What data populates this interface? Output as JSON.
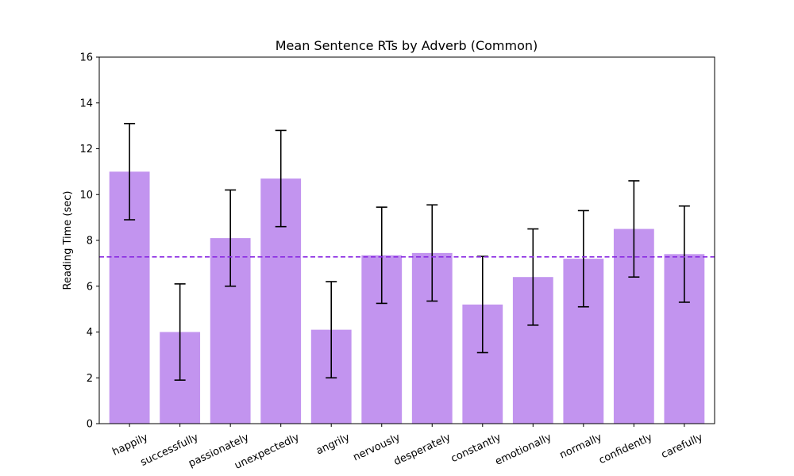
{
  "chart_data": {
    "type": "bar",
    "title": "Mean Sentence RTs by Adverb (Common)",
    "xlabel": "",
    "ylabel": "Reading Time (sec)",
    "ylim": [
      0,
      16
    ],
    "yticks": [
      0,
      2,
      4,
      6,
      8,
      10,
      12,
      14,
      16
    ],
    "categories": [
      "happily",
      "successfully",
      "passionately",
      "unexpectedly",
      "angrily",
      "nervously",
      "desperately",
      "constantly",
      "emotionally",
      "normally",
      "confidently",
      "carefully"
    ],
    "values": [
      11.0,
      4.0,
      8.1,
      10.7,
      4.1,
      7.35,
      7.45,
      5.2,
      6.4,
      7.2,
      8.5,
      7.4
    ],
    "errors": [
      2.1,
      2.1,
      2.1,
      2.1,
      2.1,
      2.1,
      2.1,
      2.1,
      2.1,
      2.1,
      2.1,
      2.1
    ],
    "mean_line": 7.28,
    "bar_color": "#c294ef",
    "mean_line_color": "#8a2be2",
    "grid": false
  }
}
